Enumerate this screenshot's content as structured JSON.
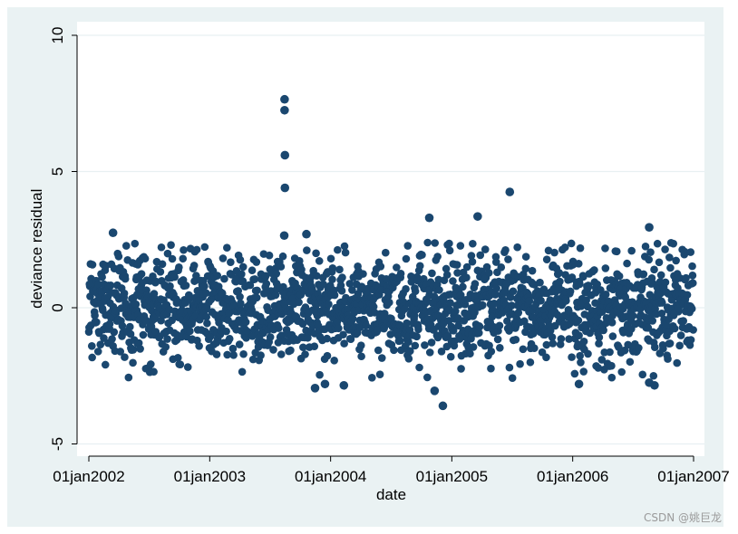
{
  "chart_data": {
    "type": "scatter",
    "title": "",
    "xlabel": "date",
    "ylabel": "deviance residual",
    "xlim": [
      "2002-01-01",
      "2007-01-01"
    ],
    "ylim": [
      -5,
      10
    ],
    "x_ticks": [
      "01jan2002",
      "01jan2003",
      "01jan2004",
      "01jan2005",
      "01jan2006",
      "01jan2007"
    ],
    "y_ticks": [
      10,
      5,
      0,
      -5
    ],
    "grid": "horizontal",
    "marker_color": "#1a476f",
    "background_color": "#eaf2f3",
    "plot_background": "#ffffff",
    "notable_points": [
      {
        "x": "2003-08-15",
        "y": 7.65
      },
      {
        "x": "2003-08-15",
        "y": 7.25
      },
      {
        "x": "2003-08-16",
        "y": 5.6
      },
      {
        "x": "2003-08-16",
        "y": 4.4
      },
      {
        "x": "2003-08-14",
        "y": 2.65
      },
      {
        "x": "2005-06-25",
        "y": 4.25
      },
      {
        "x": "2005-03-20",
        "y": 3.35
      },
      {
        "x": "2004-10-25",
        "y": 3.3
      },
      {
        "x": "2006-08-20",
        "y": 2.95
      },
      {
        "x": "2002-03-15",
        "y": 2.75
      },
      {
        "x": "2003-10-20",
        "y": 2.7
      },
      {
        "x": "2004-12-05",
        "y": -3.6
      },
      {
        "x": "2004-11-10",
        "y": -3.05
      },
      {
        "x": "2003-11-15",
        "y": -2.95
      },
      {
        "x": "2003-12-15",
        "y": -2.8
      },
      {
        "x": "2004-02-10",
        "y": -2.85
      },
      {
        "x": "2006-09-05",
        "y": -2.85
      },
      {
        "x": "2006-01-20",
        "y": -2.8
      },
      {
        "x": "2006-08-20",
        "y": -2.75
      }
    ],
    "bulk_distribution": {
      "count": 1826,
      "range_approx": [
        -2.8,
        2.4
      ],
      "center": 0
    }
  },
  "watermark": "CSDN @姚巨龙"
}
